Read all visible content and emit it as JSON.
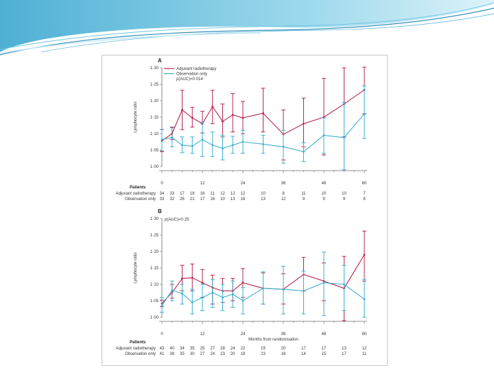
{
  "colors": {
    "adjuvant": "#b5234a",
    "observation": "#3aaed0",
    "axis": "#666666"
  },
  "chart_data": [
    {
      "type": "line",
      "panel": "A",
      "pvalue": "p(AUC)=0·014",
      "ylabel": "Lymphocyte ratio",
      "xlabel": "",
      "ylim": [
        1.0,
        1.3
      ],
      "yticks": [
        "1·00",
        "1·05",
        "1·10",
        "1·15",
        "1·20",
        "1·25",
        "1·30"
      ],
      "xlim": [
        0,
        60
      ],
      "xticks": [
        "0",
        "12",
        "24",
        "36",
        "48",
        "60"
      ],
      "series": [
        {
          "name": "Adjuvant radiotherapy",
          "key": "adjuvant",
          "x": [
            0,
            3,
            6,
            9,
            12,
            15,
            18,
            21,
            24,
            30,
            36,
            42,
            48,
            54,
            60
          ],
          "y": [
            1.078,
            1.1,
            1.172,
            1.148,
            1.13,
            1.182,
            1.137,
            1.157,
            1.148,
            1.162,
            1.098,
            1.13,
            1.15,
            1.19,
            1.233
          ],
          "lo": [
            1.045,
            1.082,
            1.112,
            1.12,
            1.102,
            1.13,
            1.09,
            1.105,
            1.1,
            1.105,
            1.02,
            1.06,
            1.035,
            1.09,
            1.16
          ],
          "hi": [
            1.112,
            1.12,
            1.232,
            1.18,
            1.168,
            1.232,
            1.19,
            1.222,
            1.198,
            1.238,
            1.172,
            1.208,
            1.268,
            1.3,
            1.302
          ]
        },
        {
          "name": "Observation only",
          "key": "observation",
          "x": [
            0,
            3,
            6,
            9,
            12,
            15,
            18,
            21,
            24,
            30,
            36,
            42,
            48,
            54,
            60
          ],
          "y": [
            1.082,
            1.088,
            1.065,
            1.062,
            1.082,
            1.065,
            1.055,
            1.065,
            1.075,
            1.068,
            1.06,
            1.045,
            1.095,
            1.088,
            1.16
          ],
          "lo": [
            1.048,
            1.06,
            1.042,
            1.04,
            1.03,
            1.03,
            1.02,
            1.04,
            1.04,
            1.04,
            1.01,
            1.015,
            1.04,
            0.99,
            1.085
          ],
          "hi": [
            1.112,
            1.118,
            1.09,
            1.09,
            1.135,
            1.105,
            1.095,
            1.092,
            1.11,
            1.095,
            1.11,
            1.072,
            1.148,
            1.195,
            1.245
          ]
        }
      ],
      "patients": {
        "heading": "Patients",
        "rows": [
          {
            "label": "Adjuvant radiotherapy",
            "values": [
              "34",
              "33",
              "17",
              "18",
              "16",
              "11",
              "12",
              "12",
              "12",
              "10",
              "8",
              "11",
              "10",
              "10",
              "7"
            ]
          },
          {
            "label": "Observation only",
            "values": [
              "33",
              "32",
              "26",
              "21",
              "17",
              "16",
              "10",
              "13",
              "16",
              "13",
              "12",
              "9",
              "9",
              "9",
              "8"
            ]
          }
        ]
      }
    },
    {
      "type": "line",
      "panel": "B",
      "pvalue": "p(AUC)=0·25",
      "ylabel": "Lymphocyte ratio",
      "xlabel": "Months from randomisation",
      "ylim": [
        1.0,
        1.3
      ],
      "yticks": [
        "1·00",
        "1·05",
        "1·10",
        "1·15",
        "1·20",
        "1·25",
        "1·30"
      ],
      "xlim": [
        0,
        60
      ],
      "xticks": [
        "0",
        "12",
        "24",
        "36",
        "48",
        "60"
      ],
      "series": [
        {
          "name": "Adjuvant radiotherapy",
          "key": "adjuvant",
          "x": [
            0,
            3,
            6,
            9,
            12,
            15,
            18,
            21,
            24,
            30,
            36,
            42,
            48,
            54,
            60
          ],
          "y": [
            1.042,
            1.075,
            1.118,
            1.12,
            1.105,
            1.09,
            1.08,
            1.08,
            1.105,
            1.088,
            1.085,
            1.13,
            1.11,
            1.088,
            1.19
          ],
          "lo": [
            1.032,
            1.058,
            1.08,
            1.08,
            1.06,
            1.04,
            1.045,
            1.05,
            1.06,
            1.04,
            1.04,
            1.08,
            1.05,
            0.99,
            1.11
          ],
          "hi": [
            1.052,
            1.1,
            1.158,
            1.162,
            1.145,
            1.128,
            1.118,
            1.118,
            1.148,
            1.135,
            1.132,
            1.182,
            1.165,
            1.185,
            1.262
          ]
        },
        {
          "name": "Observation only",
          "key": "observation",
          "x": [
            0,
            3,
            6,
            9,
            12,
            15,
            18,
            21,
            24,
            30,
            36,
            42,
            48,
            54,
            60
          ],
          "y": [
            1.035,
            1.082,
            1.072,
            1.045,
            1.06,
            1.075,
            1.06,
            1.07,
            1.05,
            1.088,
            1.085,
            1.08,
            1.105,
            1.1,
            1.055
          ],
          "lo": [
            1.015,
            1.05,
            1.04,
            1.01,
            1.02,
            1.03,
            1.02,
            1.03,
            1.01,
            1.04,
            1.01,
            1.01,
            1.005,
            1.02,
            1.0
          ],
          "hi": [
            1.06,
            1.11,
            1.1,
            1.085,
            1.1,
            1.115,
            1.1,
            1.11,
            1.09,
            1.138,
            1.155,
            1.14,
            1.198,
            1.158,
            1.115
          ]
        }
      ],
      "patients": {
        "heading": "Patients",
        "rows": [
          {
            "label": "Adjuvant radiotherapy",
            "values": [
              "43",
              "40",
              "34",
              "35",
              "25",
              "27",
              "28",
              "24",
              "22",
              "19",
              "20",
              "17",
              "17",
              "13",
              "12"
            ]
          },
          {
            "label": "Observation only",
            "values": [
              "41",
              "38",
              "35",
              "30",
              "27",
              "24",
              "23",
              "20",
              "19",
              "23",
              "18",
              "14",
              "15",
              "17",
              "11"
            ]
          }
        ]
      }
    }
  ]
}
